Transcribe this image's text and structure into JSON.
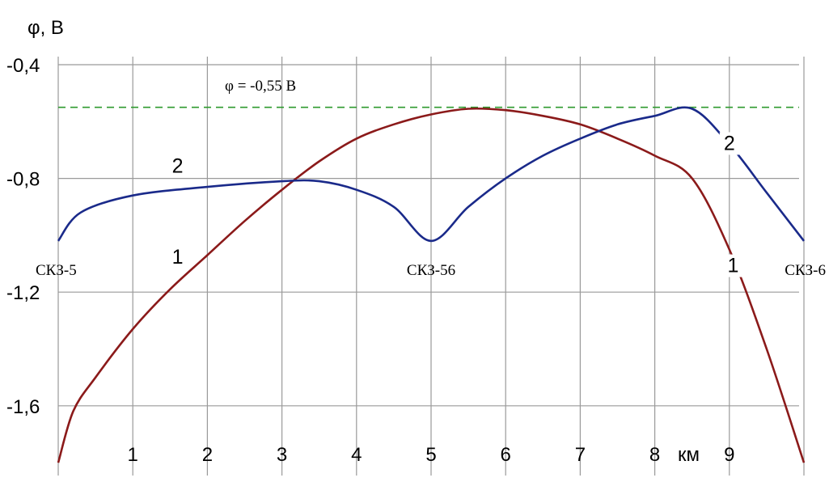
{
  "chart_data": {
    "type": "line",
    "title": "",
    "ylabel": "φ, В",
    "xlabel": "км",
    "xlim": [
      0,
      10
    ],
    "ylim": [
      -1.8,
      -0.4
    ],
    "x_ticks": [
      1,
      2,
      3,
      4,
      5,
      6,
      7,
      8,
      9
    ],
    "x_tick_labels": [
      "1",
      "2",
      "3",
      "4",
      "5",
      "6",
      "7",
      "8",
      "9"
    ],
    "y_ticks": [
      -0.4,
      -0.8,
      -1.2,
      -1.6
    ],
    "y_tick_labels": [
      "-0,4",
      "-0,8",
      "-1,2",
      "-1,6"
    ],
    "grid": true,
    "reference_line": {
      "value": -0.55,
      "label": "φ = -0,55 В",
      "color": "#2e9a2e"
    },
    "station_labels": [
      {
        "x": 0,
        "label": "СКЗ-5"
      },
      {
        "x": 5,
        "label": "СКЗ-56"
      },
      {
        "x": 10,
        "label": "СКЗ-6"
      }
    ],
    "series": [
      {
        "name": "1",
        "color": "#8b1a1a",
        "x": [
          0,
          0.2,
          0.5,
          1,
          1.5,
          2,
          2.5,
          3,
          3.5,
          4,
          4.5,
          5,
          5.5,
          6,
          6.5,
          7,
          7.5,
          8,
          8.5,
          9,
          9.5,
          10
        ],
        "y": [
          -1.8,
          -1.62,
          -1.5,
          -1.33,
          -1.19,
          -1.07,
          -0.95,
          -0.84,
          -0.74,
          -0.66,
          -0.61,
          -0.575,
          -0.555,
          -0.56,
          -0.58,
          -0.61,
          -0.66,
          -0.72,
          -0.8,
          -1.05,
          -1.4,
          -1.8
        ]
      },
      {
        "name": "2",
        "color": "#1a2a8a",
        "x": [
          0,
          0.3,
          1,
          2,
          3,
          3.5,
          4,
          4.5,
          5,
          5.5,
          6,
          6.5,
          7,
          7.5,
          8,
          8.5,
          9,
          9.5,
          10
        ],
        "y": [
          -1.02,
          -0.92,
          -0.86,
          -0.83,
          -0.81,
          -0.81,
          -0.84,
          -0.9,
          -1.02,
          -0.9,
          -0.8,
          -0.72,
          -0.66,
          -0.61,
          -0.58,
          -0.555,
          -0.68,
          -0.85,
          -1.02
        ]
      }
    ],
    "series_labels": [
      {
        "series": "1",
        "positions": [
          [
            1.6,
            -1.1
          ],
          [
            9.05,
            -1.13
          ]
        ]
      },
      {
        "series": "2",
        "positions": [
          [
            1.6,
            -0.78
          ],
          [
            9.0,
            -0.7
          ]
        ]
      }
    ]
  }
}
